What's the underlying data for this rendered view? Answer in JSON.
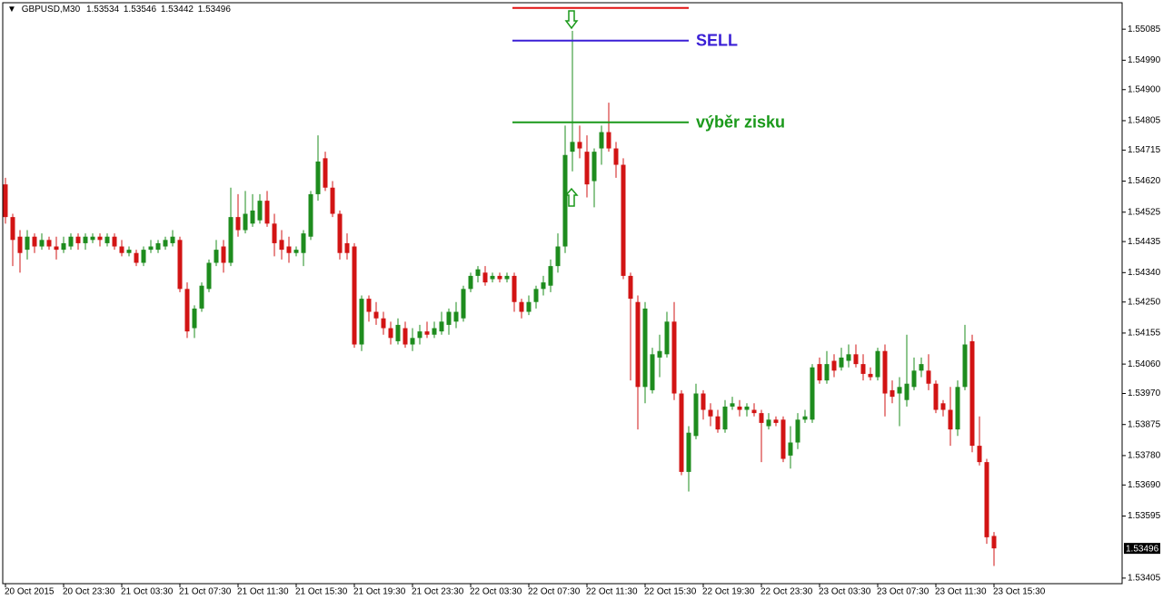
{
  "chart_data": {
    "type": "candlestick",
    "title": "GBPUSD,M30",
    "categories": [
      "20 Oct 2015",
      null,
      null,
      null,
      null,
      null,
      null,
      null,
      "20 Oct 23:30",
      null,
      null,
      null,
      null,
      null,
      null,
      null,
      "21 Oct 03:30",
      null,
      null,
      null,
      null,
      null,
      null,
      null,
      "21 Oct 07:30",
      null,
      null,
      null,
      null,
      null,
      null,
      null,
      "21 Oct 11:30",
      null,
      null,
      null,
      null,
      null,
      null,
      null,
      "21 Oct 15:30",
      null,
      null,
      null,
      null,
      null,
      null,
      null,
      "21 Oct 19:30",
      null,
      null,
      null,
      null,
      null,
      null,
      null,
      "21 Oct 23:30",
      null,
      null,
      null,
      null,
      null,
      null,
      null,
      "22 Oct 03:30",
      null,
      null,
      null,
      null,
      null,
      null,
      null,
      "22 Oct 07:30",
      null,
      null,
      null,
      null,
      null,
      null,
      null,
      "22 Oct 11:30",
      null,
      null,
      null,
      null,
      null,
      null,
      null,
      "22 Oct 15:30",
      null,
      null,
      null,
      null,
      null,
      null,
      null,
      "22 Oct 19:30",
      null,
      null,
      null,
      null,
      null,
      null,
      null,
      "22 Oct 23:30",
      null,
      null,
      null,
      null,
      null,
      null,
      null,
      "23 Oct 03:30",
      null,
      null,
      null,
      null,
      null,
      null,
      null,
      "23 Oct 07:30",
      null,
      null,
      null,
      null,
      null,
      null,
      null,
      "23 Oct 11:30",
      null,
      null,
      null,
      null,
      null,
      null,
      null,
      "23 Oct 15:30"
    ],
    "open": [
      1.5461,
      1.5451,
      1.5445,
      1.5441,
      1.5445,
      1.5442,
      1.5444,
      1.5442,
      1.5441,
      1.5442,
      1.5445,
      1.5443,
      1.5444,
      1.5445,
      1.5443,
      1.5445,
      1.5442,
      1.544,
      1.544,
      1.5437,
      1.5441,
      1.5441,
      1.5442,
      1.5443,
      1.5444,
      1.5429,
      1.5417,
      1.5423,
      1.5429,
      1.5437,
      1.5442,
      1.5437,
      1.5451,
      1.5447,
      1.5449,
      1.545,
      1.5456,
      1.5449,
      1.5444,
      1.5442,
      1.544,
      1.544,
      1.5445,
      1.5458,
      1.5469,
      1.546,
      1.5452,
      1.5443,
      1.5442,
      1.5412,
      1.5426,
      1.5422,
      1.542,
      1.5417,
      1.5413,
      1.5417,
      1.5412,
      1.5414,
      1.5416,
      1.5415,
      1.5416,
      1.5418,
      1.5419,
      1.542,
      1.5429,
      1.5433,
      1.5434,
      1.5432,
      1.5433,
      1.5432,
      1.5433,
      1.5425,
      1.5422,
      1.5425,
      1.5429,
      1.543,
      1.5436,
      1.5442,
      1.5471,
      1.5474,
      1.5471,
      1.5462,
      1.5472,
      1.5477,
      1.5472,
      1.5467,
      1.5433,
      1.5425,
      1.5399,
      1.5398,
      1.5408,
      1.5409,
      1.5419,
      1.5397,
      1.5373,
      1.5384,
      1.5397,
      1.5392,
      1.539,
      1.5386,
      1.5393,
      1.5393,
      1.5392,
      1.5392,
      1.5391,
      1.5387,
      1.5389,
      1.5389,
      1.5378,
      1.5382,
      1.5389,
      1.5389,
      1.5406,
      1.5401,
      1.5407,
      1.5405,
      1.5407,
      1.5409,
      1.5406,
      1.5403,
      1.5402,
      1.541,
      1.5398,
      1.5397,
      1.5395,
      1.5399,
      1.5404,
      1.5404,
      1.54,
      1.5394,
      1.5392,
      1.5386,
      1.5399,
      1.5413,
      1.5381,
      1.5376,
      1.53534
    ],
    "high": [
      1.5463,
      1.5452,
      1.5447,
      1.5447,
      1.5446,
      1.5446,
      1.5445,
      1.5445,
      1.5445,
      1.5446,
      1.5446,
      1.5446,
      1.5446,
      1.5446,
      1.5446,
      1.5446,
      1.5444,
      1.5442,
      1.5441,
      1.5442,
      1.5444,
      1.5444,
      1.5445,
      1.5447,
      1.5445,
      1.5431,
      1.5424,
      1.5431,
      1.5438,
      1.5444,
      1.5444,
      1.546,
      1.5458,
      1.5459,
      1.5458,
      1.5458,
      1.5459,
      1.5452,
      1.5447,
      1.5445,
      1.5442,
      1.5447,
      1.5459,
      1.5476,
      1.5471,
      1.5462,
      1.5453,
      1.5446,
      1.5443,
      1.5427,
      1.5427,
      1.5425,
      1.5422,
      1.5419,
      1.542,
      1.5419,
      1.5417,
      1.5418,
      1.5419,
      1.5419,
      1.5422,
      1.5423,
      1.5425,
      1.543,
      1.5434,
      1.5436,
      1.5436,
      1.5434,
      1.5434,
      1.5434,
      1.5434,
      1.5426,
      1.5427,
      1.543,
      1.5433,
      1.5438,
      1.5446,
      1.5479,
      1.5508,
      1.5479,
      1.5476,
      1.5472,
      1.5479,
      1.5486,
      1.5474,
      1.5469,
      1.5434,
      1.5427,
      1.5425,
      1.5411,
      1.5415,
      1.5422,
      1.5425,
      1.5398,
      1.5387,
      1.54,
      1.5398,
      1.5394,
      1.5392,
      1.5395,
      1.5396,
      1.5395,
      1.5394,
      1.5394,
      1.5392,
      1.5391,
      1.539,
      1.539,
      1.5387,
      1.5391,
      1.5392,
      1.5406,
      1.5408,
      1.541,
      1.5409,
      1.5411,
      1.5412,
      1.5412,
      1.5409,
      1.5405,
      1.5411,
      1.5412,
      1.5401,
      1.5402,
      1.5415,
      1.5408,
      1.5408,
      1.5409,
      1.5401,
      1.5395,
      1.5399,
      1.5401,
      1.5418,
      1.5415,
      1.539,
      1.5377,
      1.53546
    ],
    "low": [
      1.5449,
      1.5436,
      1.5434,
      1.5438,
      1.544,
      1.5441,
      1.5441,
      1.5438,
      1.544,
      1.5441,
      1.5441,
      1.5441,
      1.5443,
      1.5442,
      1.5442,
      1.5441,
      1.5439,
      1.5439,
      1.5436,
      1.5436,
      1.544,
      1.544,
      1.5441,
      1.5442,
      1.5428,
      1.5414,
      1.5414,
      1.5422,
      1.5428,
      1.5436,
      1.5434,
      1.5436,
      1.5445,
      1.5446,
      1.5448,
      1.5449,
      1.5448,
      1.5439,
      1.5438,
      1.5437,
      1.5439,
      1.5436,
      1.5444,
      1.5456,
      1.5459,
      1.5451,
      1.5438,
      1.5438,
      1.5411,
      1.541,
      1.5419,
      1.5418,
      1.5415,
      1.5412,
      1.5412,
      1.5411,
      1.541,
      1.5412,
      1.5414,
      1.5414,
      1.5415,
      1.5415,
      1.5417,
      1.5419,
      1.5428,
      1.5431,
      1.543,
      1.5431,
      1.5431,
      1.5431,
      1.5422,
      1.542,
      1.5421,
      1.5423,
      1.5427,
      1.5428,
      1.5434,
      1.544,
      1.5465,
      1.5469,
      1.5457,
      1.5454,
      1.5467,
      1.5471,
      1.5463,
      1.5432,
      1.5401,
      1.5386,
      1.5394,
      1.5397,
      1.5402,
      1.5408,
      1.5395,
      1.5372,
      1.5367,
      1.5383,
      1.5389,
      1.5387,
      1.5385,
      1.5385,
      1.5392,
      1.539,
      1.539,
      1.539,
      1.5376,
      1.5386,
      1.5387,
      1.5376,
      1.5374,
      1.538,
      1.5388,
      1.5388,
      1.54,
      1.54,
      1.5402,
      1.5404,
      1.5405,
      1.5405,
      1.5401,
      1.5401,
      1.5401,
      1.539,
      1.5394,
      1.5387,
      1.5393,
      1.5398,
      1.5402,
      1.5398,
      1.5391,
      1.539,
      1.5381,
      1.5384,
      1.5398,
      1.5379,
      1.5375,
      1.5351,
      1.53442
    ],
    "close": [
      1.5451,
      1.5444,
      1.544,
      1.5445,
      1.5442,
      1.5444,
      1.5442,
      1.5441,
      1.5443,
      1.5445,
      1.5443,
      1.5445,
      1.5445,
      1.5444,
      1.5445,
      1.5442,
      1.544,
      1.5441,
      1.5437,
      1.5441,
      1.5442,
      1.5443,
      1.5444,
      1.5445,
      1.5429,
      1.5416,
      1.5423,
      1.543,
      1.5437,
      1.5441,
      1.5437,
      1.5451,
      1.5447,
      1.5452,
      1.5453,
      1.5456,
      1.5449,
      1.5443,
      1.5441,
      1.544,
      1.5441,
      1.5446,
      1.5458,
      1.5468,
      1.546,
      1.5452,
      1.544,
      1.544,
      1.5412,
      1.5426,
      1.5422,
      1.542,
      1.5417,
      1.5414,
      1.5418,
      1.5412,
      1.5414,
      1.5416,
      1.5415,
      1.5417,
      1.5419,
      1.5422,
      1.5422,
      1.5429,
      1.5433,
      1.5435,
      1.5431,
      1.5433,
      1.5432,
      1.5433,
      1.5425,
      1.5422,
      1.5425,
      1.5429,
      1.5431,
      1.5436,
      1.5442,
      1.547,
      1.5474,
      1.5472,
      1.5461,
      1.5471,
      1.5477,
      1.5472,
      1.5467,
      1.5433,
      1.5426,
      1.5399,
      1.5423,
      1.5409,
      1.541,
      1.5419,
      1.5397,
      1.5373,
      1.5385,
      1.5397,
      1.5392,
      1.539,
      1.5386,
      1.5393,
      1.5394,
      1.5392,
      1.5393,
      1.5391,
      1.5388,
      1.5389,
      1.5388,
      1.5377,
      1.5382,
      1.5389,
      1.539,
      1.5405,
      1.5401,
      1.5406,
      1.5404,
      1.5408,
      1.5409,
      1.5406,
      1.5403,
      1.5402,
      1.541,
      1.5397,
      1.5396,
      1.5399,
      1.54,
      1.5404,
      1.5406,
      1.54,
      1.5392,
      1.5392,
      1.5386,
      1.5399,
      1.5412,
      1.5381,
      1.5376,
      1.5353,
      1.53496
    ],
    "up_color": "#1e8c1e",
    "down_color": "#d21414",
    "ylim": [
      1.53388,
      1.55166
    ],
    "yticks": [
      1.55085,
      {
        "value": 1.5499,
        "label": "1.54990"
      },
      {
        "value": 1.549,
        "label": "1.54900"
      },
      1.54805,
      1.54715,
      {
        "value": 1.5462,
        "label": "1.54620"
      },
      1.54525,
      1.54435,
      {
        "value": 1.5434,
        "label": "1.54340"
      },
      {
        "value": 1.5425,
        "label": "1.54250"
      },
      1.54155,
      {
        "value": 1.5406,
        "label": "1.54060"
      },
      {
        "value": 1.5397,
        "label": "1.53970"
      },
      1.53875,
      {
        "value": 1.5378,
        "label": "1.53780"
      },
      {
        "value": 1.5369,
        "label": "1.53690"
      },
      1.53595,
      1.53405
    ],
    "levels": [
      {
        "value": 1.5515,
        "color": "#e01010"
      },
      {
        "value": 1.5505,
        "color": "#3a1fd6",
        "label": "SELL"
      },
      {
        "value": 1.548,
        "color": "#1a991a",
        "label": "výběr zisku"
      }
    ]
  }
}
